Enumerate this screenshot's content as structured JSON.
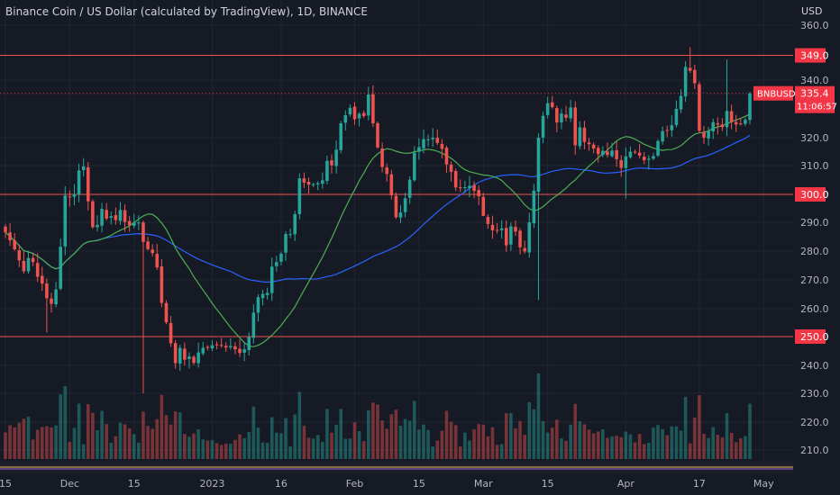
{
  "header": {
    "title": "Binance Coin / US Dollar (calculated by TradingView), 1D, BINANCE",
    "currency": "USD"
  },
  "colors": {
    "background": "#161a25",
    "grid": "#222631",
    "up": "#26a69a",
    "down": "#ef5350",
    "hline": "#ef5350",
    "ma_fast": "#4caf50",
    "ma_slow": "#2962ff",
    "text": "#b2b5be",
    "price_marker": "#f23645"
  },
  "chart_data": {
    "type": "candlestick",
    "symbol": "BNBUSD",
    "y_ticks": [
      360.0,
      340.0,
      320.0,
      310.0,
      300.0,
      290.0,
      280.0,
      270.0,
      260.0,
      250.0,
      240.0,
      230.0,
      220.0,
      210.0
    ],
    "y_tick_labels": [
      "360.0",
      "340.0",
      "320.0",
      "310.0",
      "300.0",
      "290.0",
      "280.0",
      "270.0",
      "260.0",
      "250.0",
      "240.0",
      "230.0",
      "220.0",
      "210.0"
    ],
    "x_labels": [
      {
        "label": "15",
        "i": 0
      },
      {
        "label": "Dec",
        "i": 14
      },
      {
        "label": "15",
        "i": 28
      },
      {
        "label": "2023",
        "i": 45
      },
      {
        "label": "16",
        "i": 60
      },
      {
        "label": "Feb",
        "i": 76
      },
      {
        "label": "15",
        "i": 90
      },
      {
        "label": "Mar",
        "i": 104
      },
      {
        "label": "15",
        "i": 118
      },
      {
        "label": "Apr",
        "i": 135
      },
      {
        "label": "17",
        "i": 151
      },
      {
        "label": "May",
        "i": 165
      }
    ],
    "horizontal_levels": [
      {
        "value": 349.0,
        "label": "349.0"
      },
      {
        "value": 300.0,
        "label": "300.0"
      },
      {
        "value": 250.0,
        "label": "250.0"
      }
    ],
    "last_price": {
      "symbol": "BNBUSD",
      "value": 335.4,
      "label": "335.4",
      "countdown": "11:06:57"
    },
    "closes": [
      286.5,
      283.7,
      280.6,
      276.8,
      273.0,
      277.6,
      276.2,
      271.1,
      268.7,
      263.6,
      261.7,
      266.7,
      281.5,
      299.6,
      299.1,
      300.1,
      308.3,
      309.7,
      297.5,
      288.3,
      289.1,
      294.8,
      291.3,
      292.2,
      290.8,
      294.4,
      290.1,
      289.0,
      289.9,
      289.9,
      283.2,
      280.7,
      279.3,
      274.3,
      262.0,
      255.1,
      247.7,
      240.8,
      246.1,
      242.0,
      243.1,
      240.9,
      244.5,
      246.1,
      246.1,
      247.0,
      247.1,
      247.0,
      246.2,
      246.7,
      245.6,
      244.3,
      245.6,
      249.8,
      258.6,
      264.0,
      265.1,
      265.5,
      274.6,
      276.2,
      279.1,
      285.9,
      285.9,
      292.9,
      305.6,
      304.1,
      303.4,
      303.5,
      303.9,
      304.9,
      311.7,
      310.1,
      315.7,
      325.0,
      327.8,
      330.4,
      326.4,
      328.3,
      327.5,
      335.0,
      325.0,
      316.5,
      309.5,
      307.1,
      299.7,
      291.8,
      293.5,
      298.6,
      305.1,
      314.6,
      316.6,
      319.5,
      319.4,
      320.0,
      318.1,
      316.0,
      310.4,
      307.8,
      302.4,
      302.2,
      302.5,
      303.0,
      301.2,
      299.3,
      292.3,
      289.4,
      287.2,
      287.1,
      287.9,
      282.0,
      288.6,
      286.8,
      281.3,
      279.9,
      290.0,
      301.3,
      320.0,
      327.6,
      332.0,
      330.6,
      325.3,
      328.4,
      326.9,
      330.5,
      317.3,
      323.6,
      318.5,
      317.7,
      316.1,
      314.1,
      315.3,
      313.8,
      315.4,
      312.3,
      309.2,
      313.3,
      315.0,
      314.7,
      313.6,
      311.9,
      312.5,
      313.4,
      318.8,
      322.3,
      322.4,
      324.3,
      330.0,
      334.5,
      344.8,
      343.4,
      338.9,
      322.4,
      320.0,
      322.3,
      325.4,
      324.5,
      323.7,
      329.3,
      325.4,
      324.6,
      324.8,
      326.2,
      335.4
    ],
    "ma_fast": [],
    "ma_slow": [],
    "volume": {
      "values": [],
      "max_label": ""
    }
  }
}
